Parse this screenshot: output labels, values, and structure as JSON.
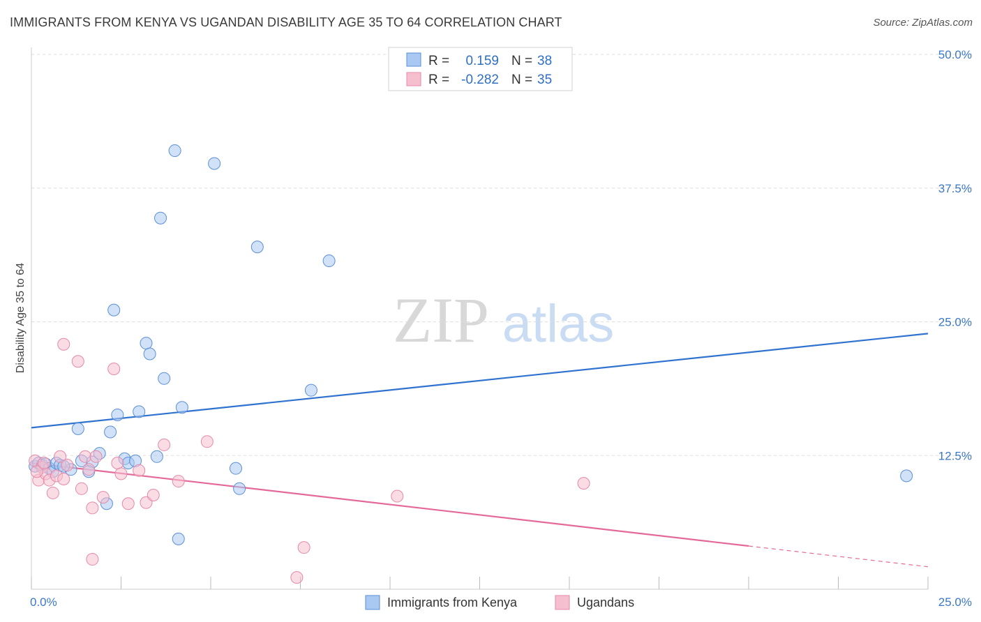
{
  "title": "IMMIGRANTS FROM KENYA VS UGANDAN DISABILITY AGE 35 TO 64 CORRELATION CHART",
  "source": "Source: ZipAtlas.com",
  "watermark": {
    "zip": "ZIP",
    "atlas": "atlas"
  },
  "colors": {
    "blue_fill": "#a9c8f2",
    "blue_stroke": "#5b8fd6",
    "blue_line": "#2f72d0",
    "pink_fill": "#f6bfd0",
    "pink_stroke": "#e589a9",
    "pink_line": "#e4699a",
    "grid": "#dddddd",
    "tick_text": "#3b78c8"
  },
  "stats_legend": {
    "rows": [
      {
        "r_label": "R =",
        "r_value": "0.159",
        "n_label": "N =",
        "n_value": "38",
        "series": "blue"
      },
      {
        "r_label": "R =",
        "r_value": "-0.282",
        "n_label": "N =",
        "n_value": "35",
        "series": "pink"
      }
    ]
  },
  "chart_data": {
    "type": "scatter",
    "title": "IMMIGRANTS FROM KENYA VS UGANDAN DISABILITY AGE 35 TO 64 CORRELATION CHART",
    "xlabel": "",
    "ylabel": "Disability Age 35 to 64",
    "xlim": [
      0,
      25
    ],
    "ylim": [
      0,
      50
    ],
    "x_tick_labels": [
      {
        "value": 0,
        "label": "0.0%"
      },
      {
        "value": 25,
        "label": "25.0%"
      }
    ],
    "y_tick_labels": [
      {
        "value": 12.5,
        "label": "12.5%"
      },
      {
        "value": 25,
        "label": "25.0%"
      },
      {
        "value": 37.5,
        "label": "37.5%"
      },
      {
        "value": 50,
        "label": "50.0%"
      }
    ],
    "grid": true,
    "legend_position": "bottom-center",
    "series": [
      {
        "name": "Immigrants from Kenya",
        "color": "blue",
        "points": [
          [
            0.1,
            11.5
          ],
          [
            0.2,
            11.8
          ],
          [
            0.3,
            11.6
          ],
          [
            0.4,
            11.7
          ],
          [
            0.5,
            11.3
          ],
          [
            0.6,
            11.0
          ],
          [
            0.7,
            11.8
          ],
          [
            0.8,
            11.6
          ],
          [
            1.1,
            11.2
          ],
          [
            1.4,
            12.0
          ],
          [
            1.7,
            11.9
          ],
          [
            1.9,
            12.7
          ],
          [
            2.1,
            8.0
          ],
          [
            2.2,
            14.7
          ],
          [
            2.4,
            16.3
          ],
          [
            2.6,
            12.2
          ],
          [
            2.7,
            11.8
          ],
          [
            2.9,
            12.0
          ],
          [
            1.3,
            15.0
          ],
          [
            3.0,
            16.6
          ],
          [
            3.2,
            23.0
          ],
          [
            3.3,
            22.0
          ],
          [
            3.5,
            12.4
          ],
          [
            3.6,
            34.7
          ],
          [
            3.7,
            19.7
          ],
          [
            4.0,
            41.0
          ],
          [
            4.1,
            4.7
          ],
          [
            4.2,
            17.0
          ],
          [
            5.1,
            39.8
          ],
          [
            5.7,
            11.3
          ],
          [
            5.8,
            9.4
          ],
          [
            6.3,
            32.0
          ],
          [
            7.8,
            18.6
          ],
          [
            8.3,
            30.7
          ],
          [
            2.3,
            26.1
          ],
          [
            24.4,
            10.6
          ],
          [
            0.9,
            11.5
          ],
          [
            1.6,
            11.0
          ]
        ]
      },
      {
        "name": "Ugandans",
        "color": "pink",
        "points": [
          [
            0.1,
            12.0
          ],
          [
            0.2,
            10.2
          ],
          [
            0.3,
            11.4
          ],
          [
            0.4,
            10.8
          ],
          [
            0.5,
            10.2
          ],
          [
            0.6,
            9.0
          ],
          [
            0.7,
            10.6
          ],
          [
            0.8,
            12.4
          ],
          [
            0.9,
            10.3
          ],
          [
            0.9,
            22.9
          ],
          [
            1.0,
            11.6
          ],
          [
            1.3,
            21.3
          ],
          [
            1.4,
            9.4
          ],
          [
            1.5,
            12.4
          ],
          [
            1.6,
            11.2
          ],
          [
            1.7,
            2.8
          ],
          [
            1.8,
            12.4
          ],
          [
            1.7,
            7.6
          ],
          [
            2.0,
            8.6
          ],
          [
            2.3,
            20.6
          ],
          [
            2.4,
            11.8
          ],
          [
            2.5,
            10.8
          ],
          [
            2.7,
            8.0
          ],
          [
            3.0,
            11.1
          ],
          [
            3.2,
            8.1
          ],
          [
            3.4,
            8.8
          ],
          [
            3.7,
            13.5
          ],
          [
            4.1,
            10.1
          ],
          [
            4.9,
            13.8
          ],
          [
            7.4,
            1.1
          ],
          [
            7.6,
            3.9
          ],
          [
            10.2,
            8.7
          ],
          [
            15.4,
            9.9
          ],
          [
            0.15,
            11.0
          ],
          [
            0.35,
            11.8
          ]
        ]
      }
    ],
    "trend_lines": [
      {
        "series": "Immigrants from Kenya",
        "x": [
          0,
          25
        ],
        "y": [
          15.1,
          23.9
        ],
        "dashed_from_x": null
      },
      {
        "series": "Ugandans",
        "x": [
          0,
          25
        ],
        "y": [
          11.8,
          2.1
        ],
        "dashed_from_x": 20
      }
    ]
  },
  "bottom_legend": [
    {
      "label": "Immigrants from Kenya",
      "series": "blue"
    },
    {
      "label": "Ugandans",
      "series": "pink"
    }
  ]
}
